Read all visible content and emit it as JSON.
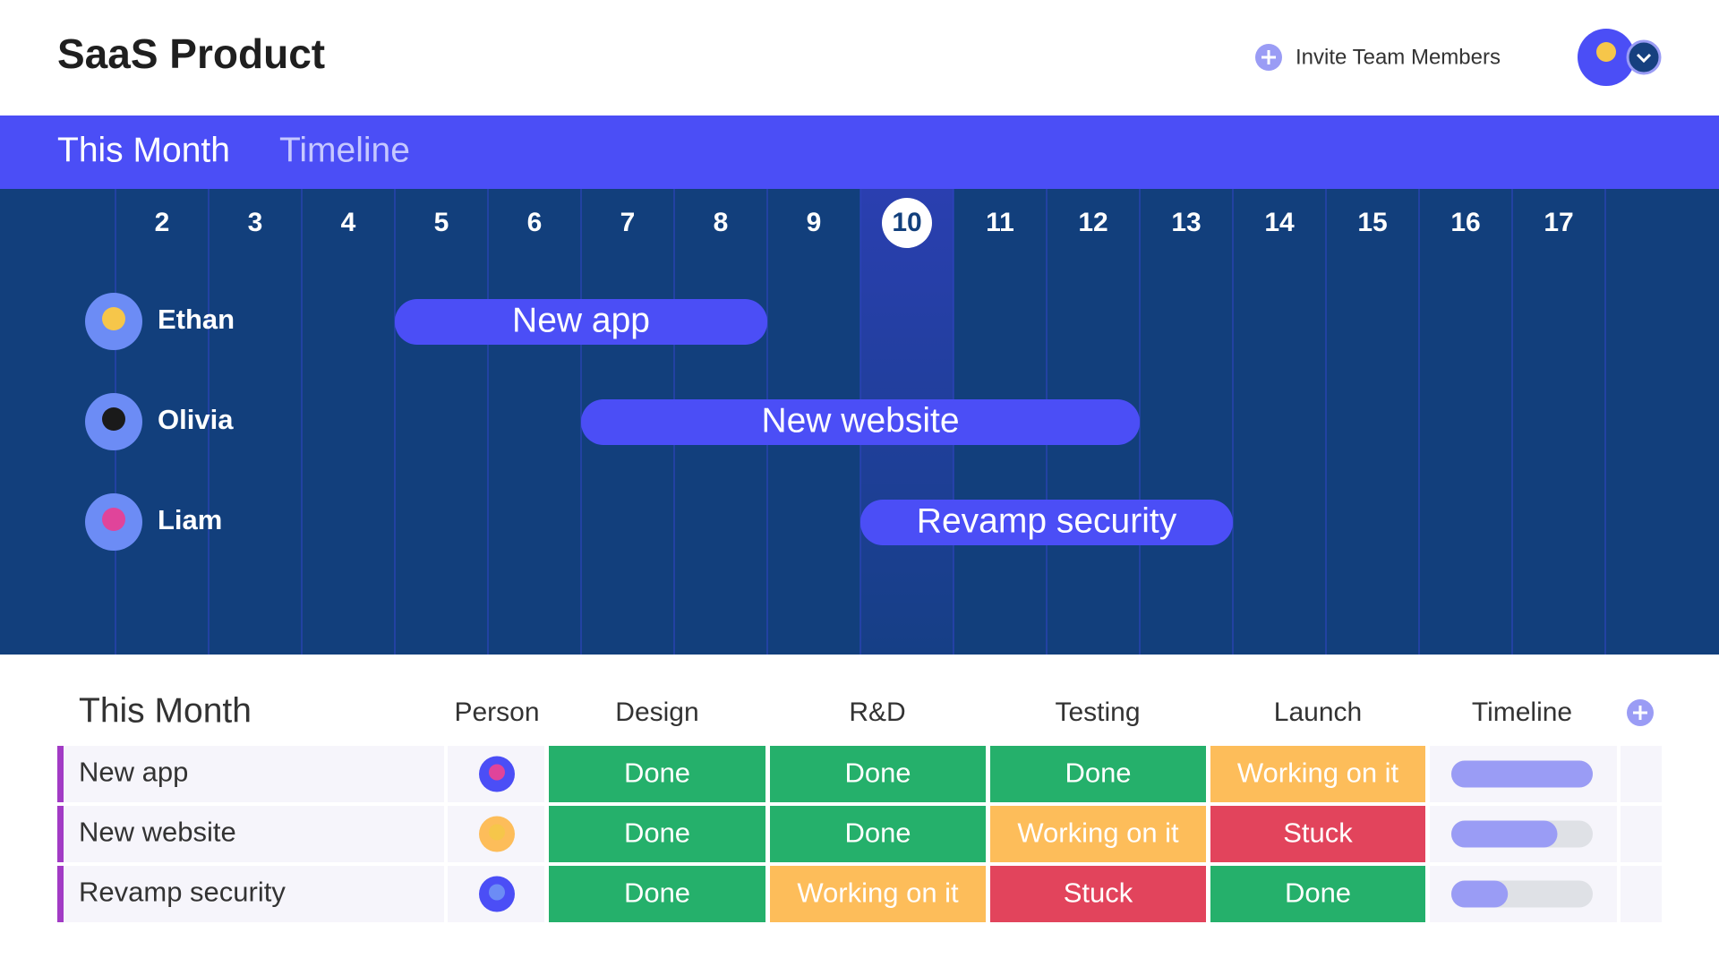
{
  "header": {
    "title": "SaaS Product",
    "invite": "Invite Team Members"
  },
  "tabs": [
    "This Month",
    "Timeline"
  ],
  "timeline": {
    "days": [
      2,
      3,
      4,
      5,
      6,
      7,
      8,
      9,
      10,
      11,
      12,
      13,
      14,
      15,
      16,
      17
    ],
    "today": 10,
    "rows": [
      {
        "name": "Ethan",
        "task": "New app",
        "start": 5,
        "end": 8
      },
      {
        "name": "Olivia",
        "task": "New website",
        "start": 7,
        "end": 12
      },
      {
        "name": "Liam",
        "task": "Revamp security",
        "start": 10,
        "end": 13
      }
    ]
  },
  "table": {
    "title": "This Month",
    "columns": [
      "Person",
      "Design",
      "R&D",
      "Testing",
      "Launch",
      "Timeline"
    ],
    "rows": [
      {
        "name": "New app",
        "statuses": [
          "Done",
          "Done",
          "Done",
          "Working on it"
        ],
        "progress": 100
      },
      {
        "name": "New website",
        "statuses": [
          "Done",
          "Done",
          "Working on it",
          "Stuck"
        ],
        "progress": 75
      },
      {
        "name": "Revamp security",
        "statuses": [
          "Done",
          "Working on it",
          "Stuck",
          "Done"
        ],
        "progress": 40
      }
    ]
  }
}
